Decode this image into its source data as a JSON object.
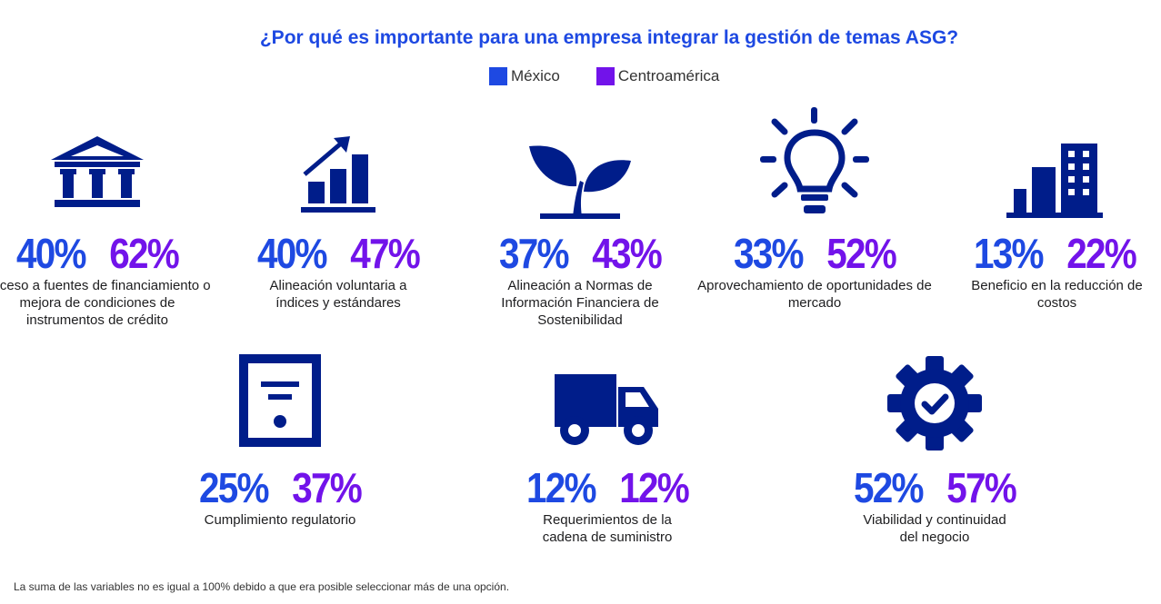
{
  "chart_data": {
    "type": "table",
    "title": "¿Por qué es importante para una empresa integrar la gestión de temas ASG?",
    "legend": [
      {
        "name": "México",
        "color": "#1e49e2"
      },
      {
        "name": "Centroamérica",
        "color": "#7213ea"
      }
    ],
    "items": [
      {
        "icon": "bank-icon",
        "mexico": "40%",
        "centroamerica": "62%",
        "label": "Acceso a fuentes de financiamiento o mejora de condiciones de instrumentos de crédito"
      },
      {
        "icon": "growth-chart-icon",
        "mexico": "40%",
        "centroamerica": "47%",
        "label": "Alineación voluntaria a índices y estándares"
      },
      {
        "icon": "sprout-icon",
        "mexico": "37%",
        "centroamerica": "43%",
        "label": "Alineación a Normas de Información Financiera de Sostenibilidad"
      },
      {
        "icon": "lightbulb-icon",
        "mexico": "33%",
        "centroamerica": "52%",
        "label": "Aprovechamiento de oportunidades de mercado"
      },
      {
        "icon": "buildings-icon",
        "mexico": "13%",
        "centroamerica": "22%",
        "label": "Beneficio en la reducción de costos"
      },
      {
        "icon": "certificate-icon",
        "mexico": "25%",
        "centroamerica": "37%",
        "label": "Cumplimiento regulatorio"
      },
      {
        "icon": "truck-icon",
        "mexico": "12%",
        "centroamerica": "12%",
        "label": "Requerimientos de la cadena de suministro"
      },
      {
        "icon": "gear-check-icon",
        "mexico": "52%",
        "centroamerica": "57%",
        "label": "Viabilidad y continuidad del negocio"
      }
    ],
    "footnote": "La suma de las variables no es igual a 100% debido a que era posible seleccionar más de una opción."
  }
}
